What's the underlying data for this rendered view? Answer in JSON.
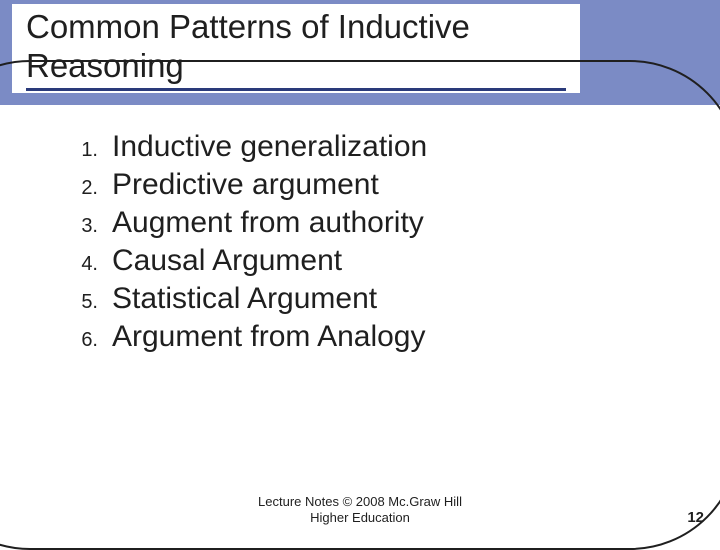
{
  "colors": {
    "header_band": "#7b8bc5",
    "title_underline": "#2a3a7a",
    "text": "#1f1f1f",
    "background": "#ffffff",
    "frame_border": "#1f1f1f"
  },
  "title": {
    "line1": "Common Patterns of Inductive",
    "line2": "Reasoning",
    "fontsize": 33,
    "underline_width": 540
  },
  "list": {
    "number_fontsize": 20,
    "text_fontsize": 30,
    "items": [
      {
        "num": "1.",
        "text": "Inductive generalization"
      },
      {
        "num": "2.",
        "text": "Predictive argument"
      },
      {
        "num": "3.",
        "text": "Augment from authority"
      },
      {
        "num": "4.",
        "text": "Causal Argument"
      },
      {
        "num": "5.",
        "text": "Statistical Argument"
      },
      {
        "num": "6.",
        "text": "Argument from Analogy"
      }
    ]
  },
  "footer": {
    "line1": "Lecture Notes © 2008 Mc.Graw Hill",
    "line2": "Higher Education",
    "fontsize": 13
  },
  "page_number": "12"
}
